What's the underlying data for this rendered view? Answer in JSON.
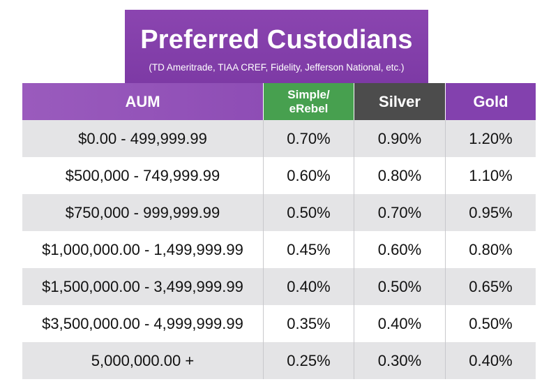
{
  "title": "Preferred Custodians",
  "subtitle": "(TD Ameritrade, TIAA CREF, Fidelity, Jefferson National, etc.)",
  "columns": {
    "aum": "AUM",
    "simple_line1": "Simple/",
    "simple_line2": "eRebel",
    "silver": "Silver",
    "gold": "Gold"
  },
  "rows": [
    {
      "aum": "$0.00 - 499,999.99",
      "simple": "0.70%",
      "silver": "0.90%",
      "gold": "1.20%"
    },
    {
      "aum": "$500,000 - 749,999.99",
      "simple": "0.60%",
      "silver": "0.80%",
      "gold": "1.10%"
    },
    {
      "aum": "$750,000 - 999,999.99",
      "simple": "0.50%",
      "silver": "0.70%",
      "gold": "0.95%"
    },
    {
      "aum": "$1,000,000.00 - 1,499,999.99",
      "simple": "0.45%",
      "silver": "0.60%",
      "gold": "0.80%"
    },
    {
      "aum": "$1,500,000.00 - 3,499,999.99",
      "simple": "0.40%",
      "silver": "0.50%",
      "gold": "0.65%"
    },
    {
      "aum": "$3,500,000.00 - 4,999,999.99",
      "simple": "0.35%",
      "silver": "0.40%",
      "gold": "0.50%"
    },
    {
      "aum": "5,000,000.00 +",
      "simple": "0.25%",
      "silver": "0.30%",
      "gold": "0.40%"
    }
  ],
  "colors": {
    "title_bg": "#8341ae",
    "simple_header": "#47a04f",
    "silver_header": "#4c4c4c",
    "gold_header": "#8341ae",
    "stripe": "#e4e4e6"
  }
}
